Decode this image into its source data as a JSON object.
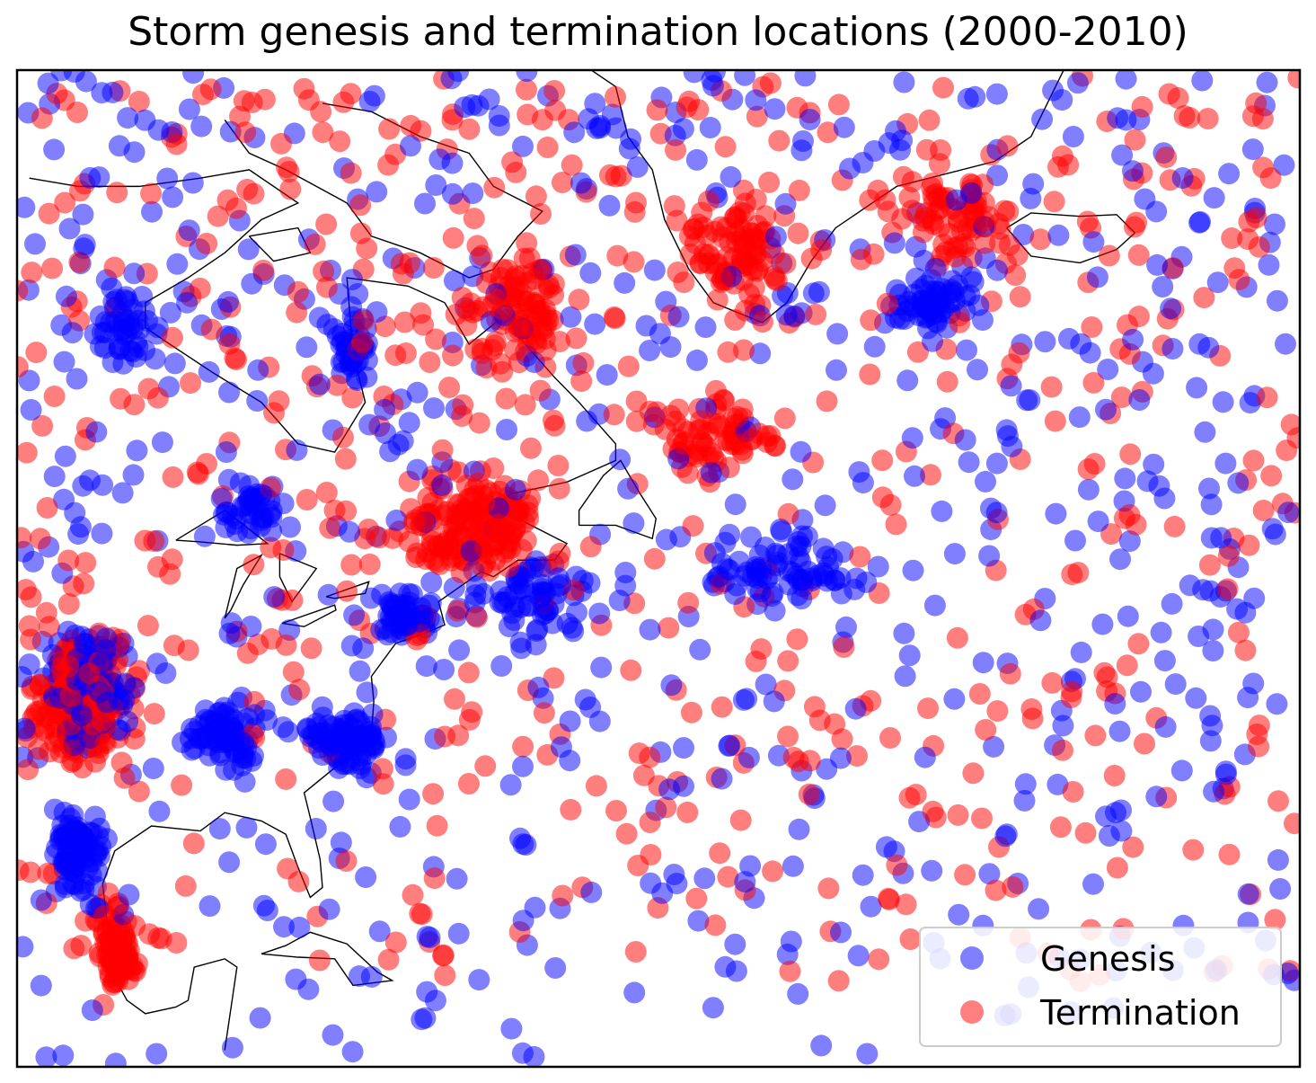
{
  "title": "Storm genesis and termination locations (2000-2010)",
  "chart_data": {
    "type": "scatter",
    "title": "Storm genesis and termination locations (2000-2010)",
    "projection": "map (North America / North Atlantic)",
    "grid": false,
    "legend_position": "lower-right",
    "xlim": [
      -105,
      0
    ],
    "ylim": [
      15,
      75
    ],
    "series": [
      {
        "name": "Genesis",
        "color": "#0000ff",
        "opacity": 0.5,
        "clusters": [
          {
            "lon": [
              -103,
              -95
            ],
            "lat": [
              34,
              42
            ],
            "n": 160
          },
          {
            "lon": [
              -103,
              -97
            ],
            "lat": [
              24,
              32
            ],
            "n": 80
          },
          {
            "lon": [
              -92,
              -84
            ],
            "lat": [
              32,
              38
            ],
            "n": 70
          },
          {
            "lon": [
              -82,
              -74
            ],
            "lat": [
              32,
              37
            ],
            "n": 90
          },
          {
            "lon": [
              -77,
              -70
            ],
            "lat": [
              40,
              44
            ],
            "n": 50
          },
          {
            "lon": [
              -90,
              -82
            ],
            "lat": [
              46,
              51
            ],
            "n": 40
          },
          {
            "lon": [
              -100,
              -92
            ],
            "lat": [
              56,
              63
            ],
            "n": 45
          },
          {
            "lon": [
              -80,
              -75
            ],
            "lat": [
              55,
              61
            ],
            "n": 35
          },
          {
            "lon": [
              -35,
              -25
            ],
            "lat": [
              58,
              64
            ],
            "n": 60
          },
          {
            "lon": [
              -50,
              -35
            ],
            "lat": [
              42,
              48
            ],
            "n": 70
          },
          {
            "lon": [
              -70,
              -55
            ],
            "lat": [
              40,
              47
            ],
            "n": 60
          }
        ],
        "background_n": 700,
        "lon_range": [
          -105,
          0
        ],
        "lat_range": [
          15,
          75
        ]
      },
      {
        "name": "Termination",
        "color": "#ff0000",
        "opacity": 0.5,
        "clusters": [
          {
            "lon": [
              -105,
              -94
            ],
            "lat": [
              32,
              42
            ],
            "n": 200
          },
          {
            "lon": [
              -100,
              -94
            ],
            "lat": [
              18,
              26
            ],
            "n": 80
          },
          {
            "lon": [
              -75,
              -60
            ],
            "lat": [
              43,
              52
            ],
            "n": 150
          },
          {
            "lon": [
              -70,
              -58
            ],
            "lat": [
              55,
              66
            ],
            "n": 90
          },
          {
            "lon": [
              -52,
              -40
            ],
            "lat": [
              60,
              68
            ],
            "n": 80
          },
          {
            "lon": [
              -35,
              -20
            ],
            "lat": [
              62,
              70
            ],
            "n": 60
          },
          {
            "lon": [
              -55,
              -40
            ],
            "lat": [
              50,
              56
            ],
            "n": 60
          }
        ],
        "background_n": 650,
        "lon_range": [
          -105,
          0
        ],
        "lat_range": [
          20,
          75
        ]
      }
    ],
    "legend": [
      "Genesis",
      "Termination"
    ]
  }
}
